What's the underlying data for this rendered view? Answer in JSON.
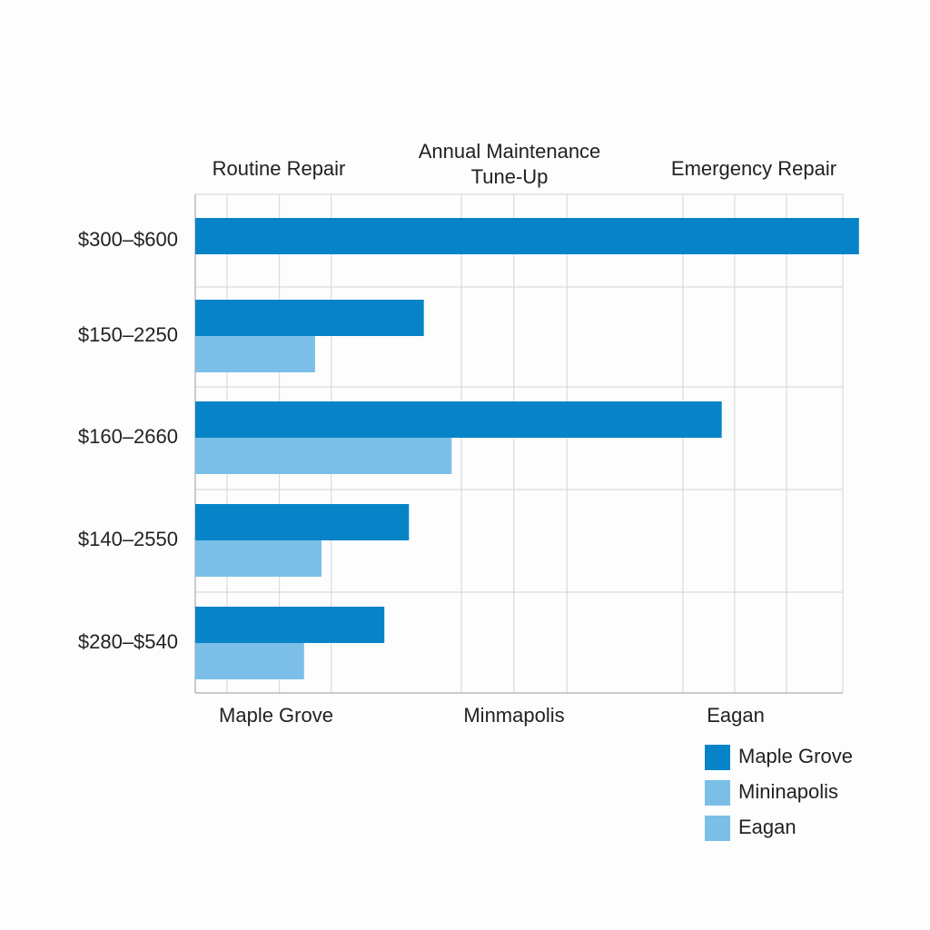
{
  "chart_data": {
    "type": "hbar",
    "categories": [
      "$300–$600",
      "$150–2250",
      "$160–2660",
      "$140–2550",
      "$280–$540"
    ],
    "top_labels": [
      "Routine Repair",
      "Annual Maintenance Tune-Up",
      "Emergency Repair"
    ],
    "bottom_labels": [
      "Maple Grove",
      "Minmapolis",
      "Eagan"
    ],
    "series": [
      {
        "name": "Maple Grove",
        "color": "#0784c8",
        "values": [
          102.5,
          35.3,
          81.3,
          33.0,
          29.2
        ]
      },
      {
        "name": "Mininapolis",
        "color": "#7bbfe8",
        "values": [
          null,
          18.5,
          39.6,
          19.5,
          16.8
        ]
      },
      {
        "name": "Eagan",
        "color": "#7bbfe8",
        "values": [
          null,
          null,
          null,
          null,
          null
        ]
      }
    ],
    "xlim": [
      0,
      100
    ],
    "xticks": [
      4.9,
      13.0,
      21.0,
      41.1,
      49.2,
      57.4,
      75.3,
      83.3,
      91.3,
      100
    ],
    "grid": true
  }
}
